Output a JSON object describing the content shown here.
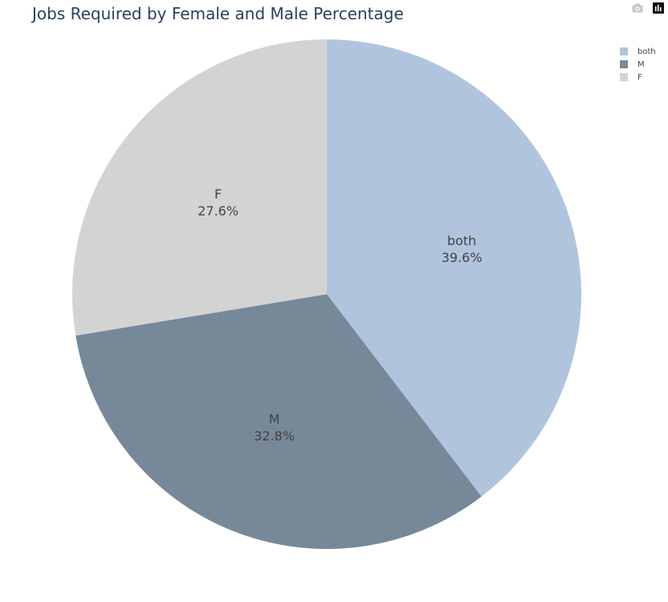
{
  "title": "Jobs Required by Female and Male Percentage",
  "modebar": {
    "icons": [
      "camera-icon",
      "plotly-logo-icon"
    ]
  },
  "chart_data": {
    "type": "pie",
    "title": "Jobs Required by Female and Male Percentage",
    "labels": [
      "both",
      "M",
      "F"
    ],
    "values": [
      39.6,
      32.8,
      27.6
    ],
    "percent_text": [
      "39.6%",
      "32.8%",
      "27.6%"
    ],
    "colors": [
      "#b0c4de",
      "#778899",
      "#d3d3d3"
    ],
    "legend_position": "top-right",
    "sort_order": "clockwise-from-top"
  }
}
